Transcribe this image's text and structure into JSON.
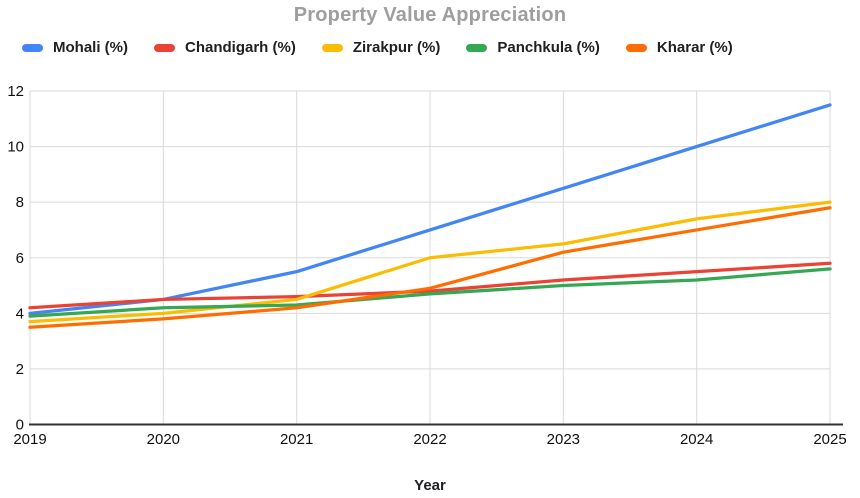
{
  "title": "Property Value Appreciation",
  "chart_data": {
    "type": "line",
    "title": "Property Value Appreciation",
    "xlabel": "Year",
    "ylabel": "",
    "categories": [
      "2019",
      "2020",
      "2021",
      "2022",
      "2023",
      "2024",
      "2025"
    ],
    "series": [
      {
        "name": "Mohali (%)",
        "color": "#4285F4",
        "values": [
          4.0,
          4.5,
          5.5,
          7.0,
          8.5,
          10.0,
          11.5
        ]
      },
      {
        "name": "Chandigarh (%)",
        "color": "#EA4335",
        "values": [
          4.2,
          4.5,
          4.6,
          4.8,
          5.2,
          5.5,
          5.8
        ]
      },
      {
        "name": "Zirakpur (%)",
        "color": "#FBBC04",
        "values": [
          3.7,
          4.0,
          4.5,
          6.0,
          6.5,
          7.4,
          8.0
        ]
      },
      {
        "name": "Panchkula (%)",
        "color": "#34A853",
        "values": [
          3.9,
          4.2,
          4.3,
          4.7,
          5.0,
          5.2,
          5.6
        ]
      },
      {
        "name": "Kharar (%)",
        "color": "#FF6D01",
        "values": [
          3.5,
          3.8,
          4.2,
          4.9,
          6.2,
          7.0,
          7.8
        ]
      }
    ],
    "ylim": [
      0,
      12
    ],
    "y_ticks": [
      0,
      2,
      4,
      6,
      8,
      10,
      12
    ],
    "grid": true,
    "legend_position": "top"
  },
  "colors": {
    "title_text": "#9e9e9e",
    "legend_text": "#202124",
    "tick_text": "#111111",
    "gridline": "#dadada",
    "axis_line": "#333333",
    "background": "#ffffff"
  }
}
